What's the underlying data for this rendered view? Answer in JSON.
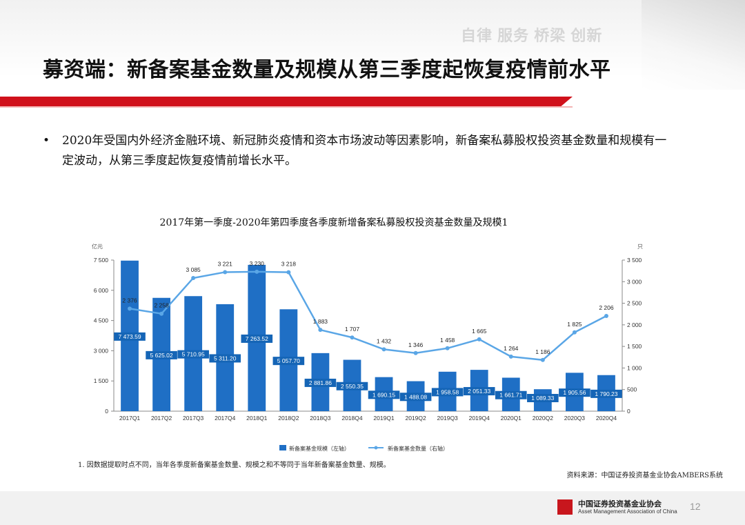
{
  "header": {
    "slogan": "自律 服务 桥梁 创新",
    "title": "募资端：新备案基金数量及规模从第三季度起恢复疫情前水平"
  },
  "bullet": {
    "marker": "•",
    "text": "2020年受国内外经济金融环境、新冠肺炎疫情和资本市场波动等因素影响，新备案私募股权投资基金数量和规模有一定波动，从第三季度起恢复疫情前增长水平。"
  },
  "colors": {
    "accent_red": "#d0111b",
    "bar_blue": "#1f6fc5",
    "line_blue": "#5aa6e6"
  },
  "chart_data": {
    "type": "bar",
    "title": "2017年第一季度-2020年第四季度各季度新增备案私募股权投资基金数量及规模1",
    "left_unit": "亿元",
    "right_unit": "只",
    "categories": [
      "2017Q1",
      "2017Q2",
      "2017Q3",
      "2017Q4",
      "2018Q1",
      "2018Q2",
      "2018Q3",
      "2018Q4",
      "2019Q1",
      "2019Q2",
      "2019Q3",
      "2019Q4",
      "2020Q1",
      "2020Q2",
      "2020Q3",
      "2020Q4"
    ],
    "left_axis": {
      "min": 0,
      "max": 7500,
      "ticks": [
        0,
        1500,
        3000,
        4500,
        6000,
        7500
      ],
      "tick_labels": [
        "0",
        "1 500",
        "3 000",
        "4 500",
        "6 000",
        "7 500"
      ]
    },
    "right_axis": {
      "min": 0,
      "max": 3500,
      "ticks": [
        0,
        500,
        1000,
        1500,
        2000,
        2500,
        3000,
        3500
      ],
      "tick_labels": [
        "0",
        "500",
        "1 000",
        "1 500",
        "2 000",
        "2 500",
        "3 000",
        "3 500"
      ]
    },
    "series": [
      {
        "name": "新备案基金规模（左轴）",
        "type": "bar",
        "axis": "left",
        "values": [
          7473.59,
          5625.02,
          5710.95,
          5311.2,
          7263.52,
          5057.7,
          2881.86,
          2550.35,
          1690.15,
          1488.08,
          1958.58,
          2051.33,
          1661.71,
          1089.33,
          1905.56,
          1790.23
        ],
        "labels": [
          "7 473.59",
          "5 625.02",
          "5 710.95",
          "5 311.20",
          "7 263.52",
          "5 057.70",
          "2 881.86",
          "2 550.35",
          "1 690.15",
          "1 488.08",
          "1 958.58",
          "2 051.33",
          "1 661.71",
          "1 089.33",
          "1 905.56",
          "1 790.23"
        ]
      },
      {
        "name": "新备案基金数量（右轴）",
        "type": "line",
        "axis": "right",
        "values": [
          2376,
          2258,
          3085,
          3221,
          3230,
          3218,
          1883,
          1707,
          1432,
          1346,
          1458,
          1665,
          1264,
          1186,
          1825,
          2206
        ],
        "labels": [
          "2 376",
          "2 258",
          "3 085",
          "3 221",
          "3 230",
          "3 218",
          "1 883",
          "1 707",
          "1 432",
          "1 346",
          "1 458",
          "1 665",
          "1 264",
          "1 186",
          "1 825",
          "2 206"
        ]
      }
    ],
    "legend_position": "bottom",
    "grid": false
  },
  "footnote": "1. 因数据提取时点不同，当年各季度新备案基金数量、规模之和不等同于当年新备案基金数量、规模。",
  "source": "资料来源：中国证券投资基金业协会AMBERS系统",
  "footer": {
    "org_cn": "中国证券投资基金业协会",
    "org_en": "Asset Management Association of China",
    "page": "12"
  }
}
